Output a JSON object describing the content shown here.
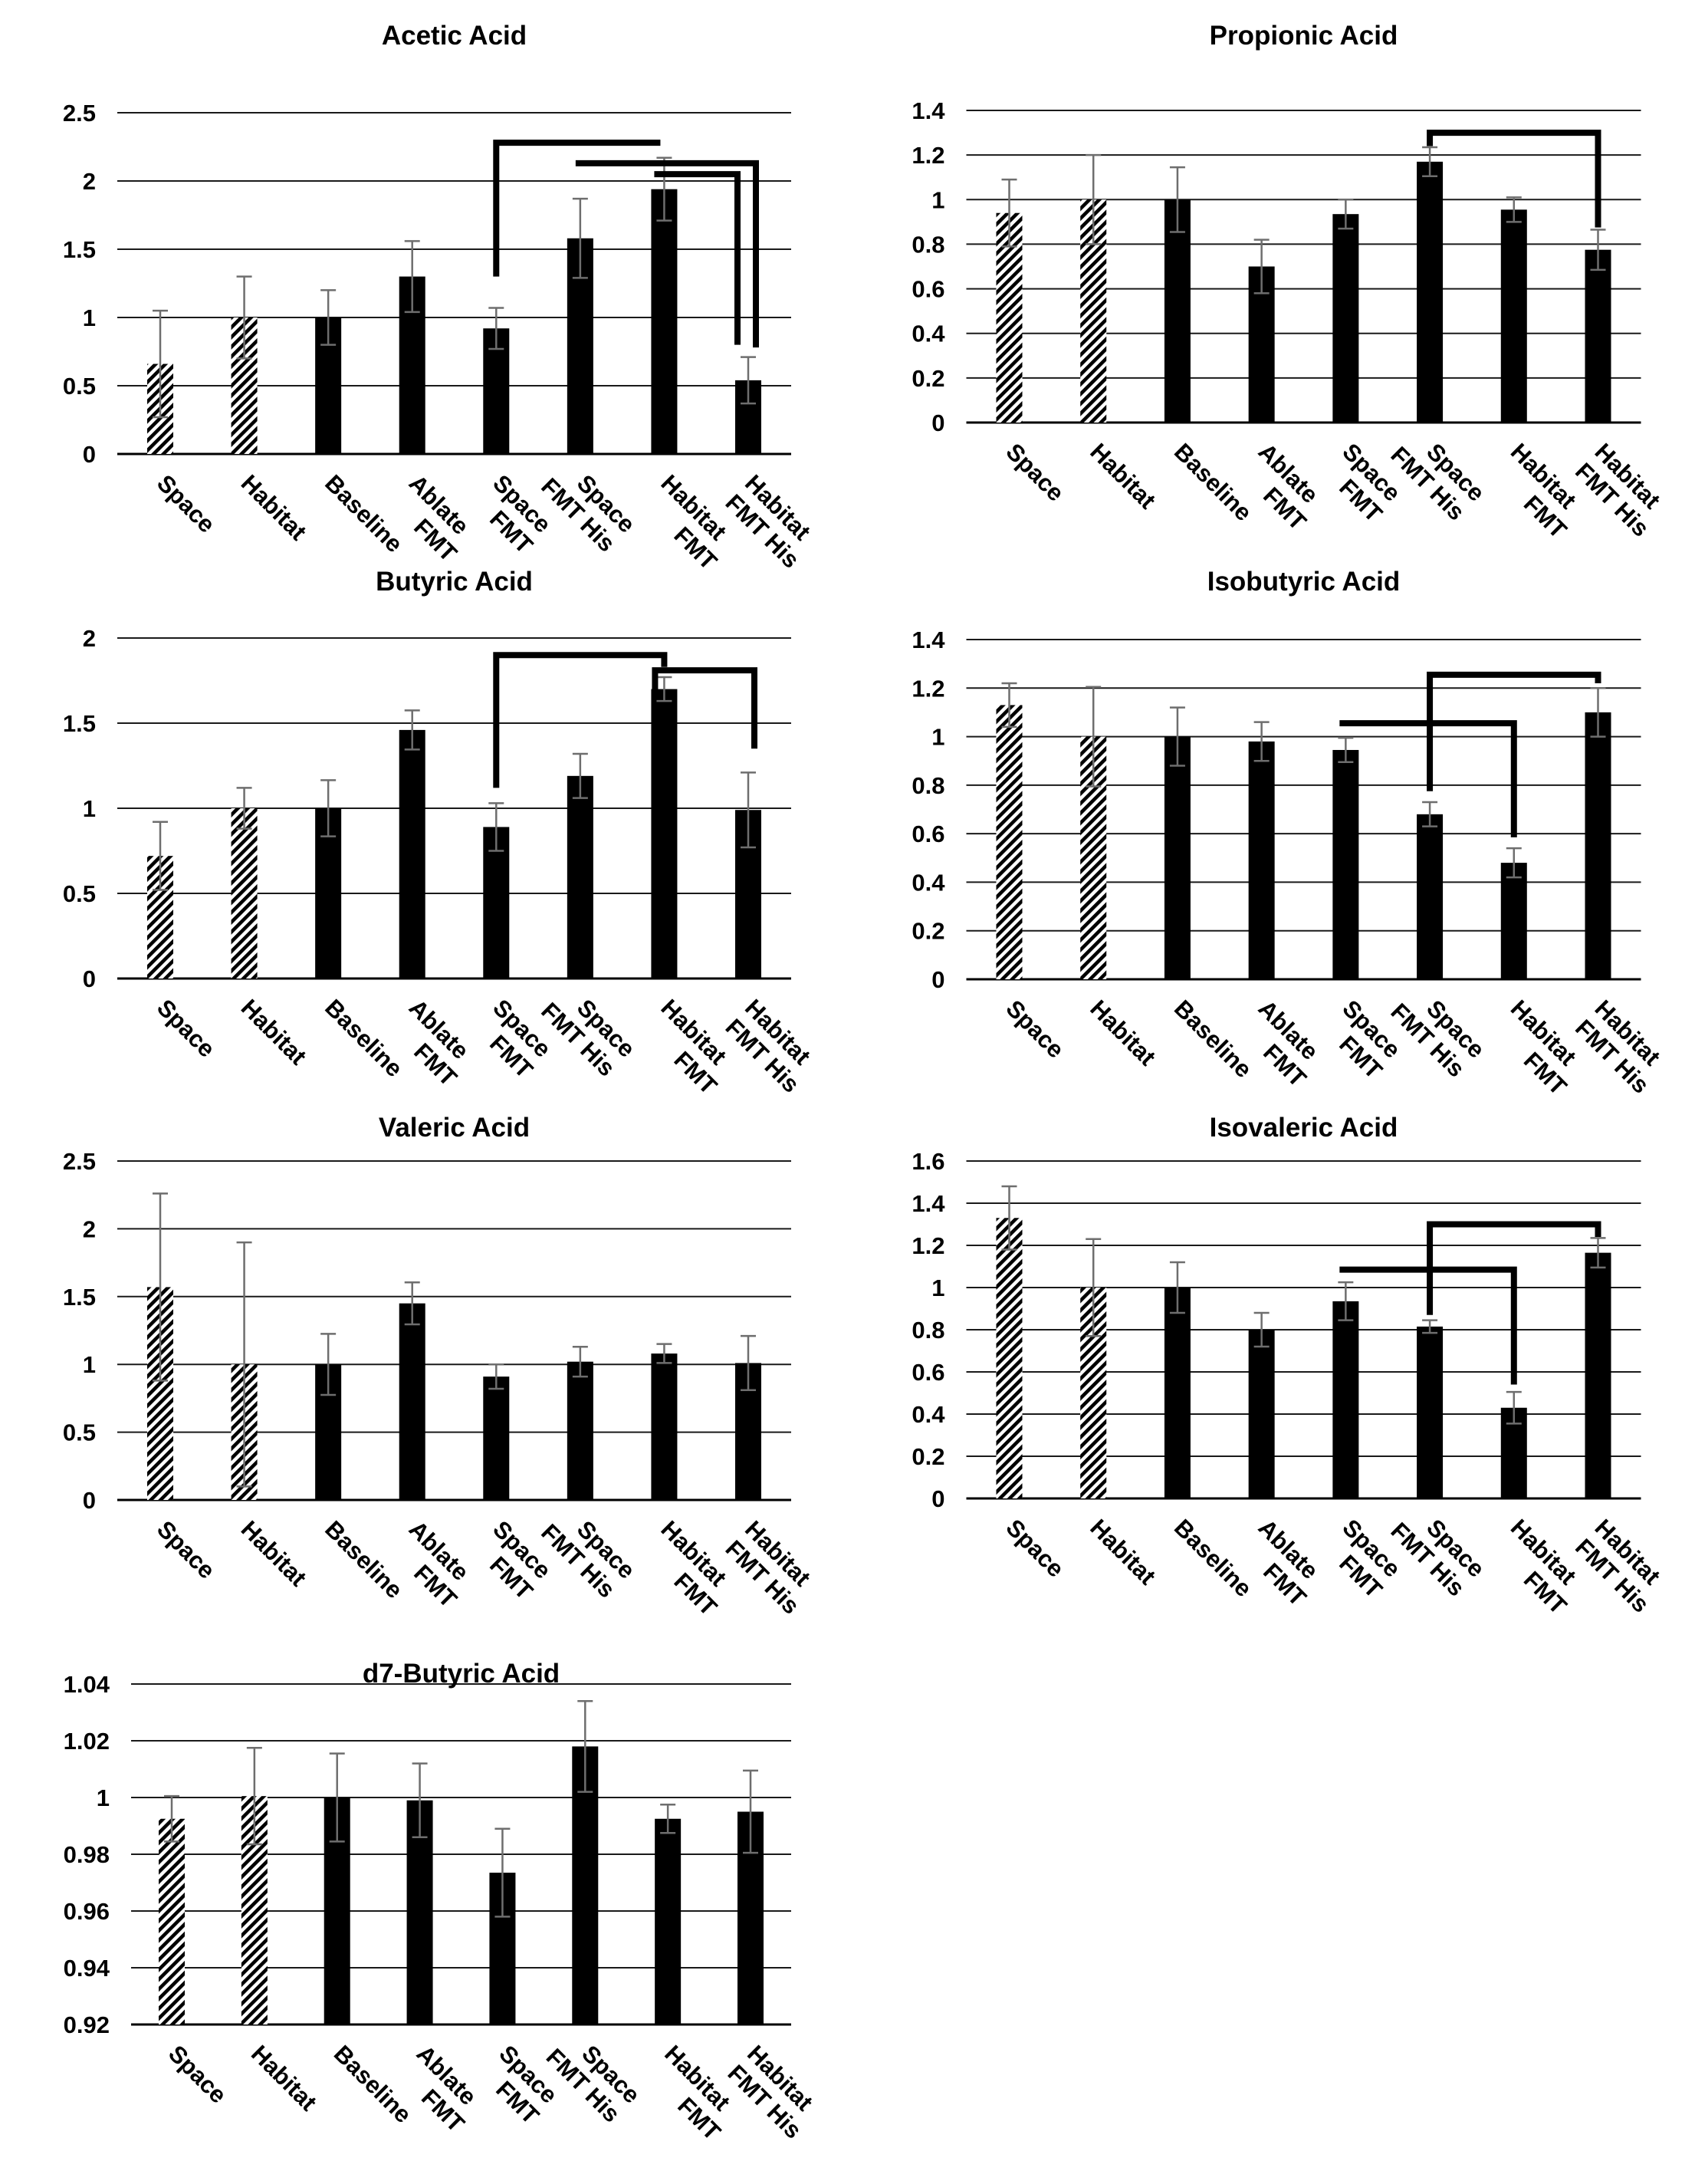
{
  "figure": {
    "rows": 4,
    "columns": 2,
    "background": "#ffffff"
  },
  "colors": {
    "bar": "#000000",
    "hatch_stripe": "#000000",
    "error_bar": "#6e6e6e",
    "gridline": "#1a1a1a",
    "axis": "#000000",
    "bracket": "#000000",
    "text": "#000000"
  },
  "x_categories": [
    {
      "label": "Space",
      "lines": [
        "Space"
      ],
      "hatched": true
    },
    {
      "label": "Habitat",
      "lines": [
        "Habitat"
      ],
      "hatched": true
    },
    {
      "label": "Baseline",
      "lines": [
        "Baseline"
      ],
      "hatched": false
    },
    {
      "label": "Ablate FMT",
      "lines": [
        "Ablate",
        "FMT"
      ],
      "hatched": false
    },
    {
      "label": "Space FMT",
      "lines": [
        "Space",
        "FMT"
      ],
      "hatched": false
    },
    {
      "label": "Space FMT His",
      "lines": [
        "Space",
        "FMT His"
      ],
      "hatched": false
    },
    {
      "label": "Habitat FMT",
      "lines": [
        "Habitat",
        "FMT"
      ],
      "hatched": false
    },
    {
      "label": "Habitat FMT His",
      "lines": [
        "Habitat",
        "FMT His"
      ],
      "hatched": false
    }
  ],
  "chart_data": [
    {
      "type": "bar",
      "title": "Acetic Acid",
      "row": 0,
      "col": 0,
      "ymin": 0,
      "ymax": 2.5,
      "ytick_labels": [
        "0",
        "0.5",
        "1",
        "1.5",
        "2",
        "2.5"
      ],
      "categories": [
        "Space",
        "Habitat",
        "Baseline",
        "Ablate FMT",
        "Space FMT",
        "Space FMT His",
        "Habitat FMT",
        "Habitat FMT His"
      ],
      "values": [
        0.66,
        1.0,
        1.0,
        1.3,
        0.92,
        1.58,
        1.94,
        0.54
      ],
      "errors": [
        0.39,
        0.3,
        0.2,
        0.26,
        0.15,
        0.29,
        0.23,
        0.17
      ],
      "brackets": [
        {
          "a": 4,
          "b": 6,
          "y": 2.28,
          "a_drop": 1.3,
          "b_drop": null,
          "a_dx": 0,
          "b_dx": -5
        },
        {
          "a": 5,
          "b": 7,
          "y": 2.13,
          "a_drop": null,
          "b_drop": 0.78,
          "a_dx": -6,
          "b_dx": 10
        },
        {
          "a": 6,
          "b": 7,
          "y": 2.05,
          "a_drop": null,
          "b_drop": 0.8,
          "a_dx": -13,
          "b_dx": -14
        }
      ]
    },
    {
      "type": "bar",
      "title": "Propionic Acid",
      "row": 0,
      "col": 1,
      "ymin": 0,
      "ymax": 1.4,
      "ytick_labels": [
        "0",
        "0.2",
        "0.4",
        "0.6",
        "0.8",
        "1",
        "1.2",
        "1.4"
      ],
      "categories": [
        "Space",
        "Habitat",
        "Baseline",
        "Ablate FMT",
        "Space FMT",
        "Space FMT His",
        "Habitat FMT",
        "Habitat FMT His"
      ],
      "values": [
        0.94,
        1.0,
        1.0,
        0.7,
        0.935,
        1.17,
        0.955,
        0.775
      ],
      "errors": [
        0.15,
        0.2,
        0.145,
        0.12,
        0.065,
        0.065,
        0.055,
        0.09
      ],
      "brackets": [
        {
          "a": 5,
          "b": 7,
          "y": 1.3,
          "a_drop": 1.24,
          "b_drop": 0.875,
          "a_dx": 0,
          "b_dx": 0
        }
      ]
    },
    {
      "type": "bar",
      "title": "Butyric Acid",
      "row": 1,
      "col": 0,
      "ymin": 0,
      "ymax": 2.0,
      "ytick_labels": [
        "0",
        "0.5",
        "1",
        "1.5",
        "2"
      ],
      "categories": [
        "Space",
        "Habitat",
        "Baseline",
        "Ablate FMT",
        "Space FMT",
        "Space FMT His",
        "Habitat FMT",
        "Habitat FMT His"
      ],
      "values": [
        0.72,
        1.0,
        1.0,
        1.46,
        0.89,
        1.19,
        1.7,
        0.99
      ],
      "errors": [
        0.2,
        0.12,
        0.165,
        0.115,
        0.14,
        0.13,
        0.07,
        0.22
      ],
      "brackets": [
        {
          "a": 4,
          "b": 6,
          "y": 1.9,
          "a_drop": 1.12,
          "b_drop": 1.83,
          "a_dx": 0,
          "b_dx": 0
        },
        {
          "a": 6,
          "b": 7,
          "y": 1.81,
          "a_drop": 1.65,
          "b_drop": 1.35,
          "a_dx": -12,
          "b_dx": 8
        }
      ]
    },
    {
      "type": "bar",
      "title": "Isobutyric Acid",
      "row": 1,
      "col": 1,
      "ymin": 0,
      "ymax": 1.4,
      "ytick_labels": [
        "0",
        "0.2",
        "0.4",
        "0.6",
        "0.8",
        "1",
        "1.2",
        "1.4"
      ],
      "categories": [
        "Space",
        "Habitat",
        "Baseline",
        "Ablate FMT",
        "Space FMT",
        "Space FMT His",
        "Habitat FMT",
        "Habitat FMT His"
      ],
      "values": [
        1.13,
        1.0,
        1.0,
        0.98,
        0.945,
        0.68,
        0.48,
        1.1
      ],
      "errors": [
        0.09,
        0.205,
        0.12,
        0.08,
        0.05,
        0.05,
        0.06,
        0.1
      ],
      "brackets": [
        {
          "a": 5,
          "b": 7,
          "y": 1.255,
          "a_drop": 0.775,
          "b_drop": 1.22,
          "a_dx": 0,
          "b_dx": 0
        },
        {
          "a": 4,
          "b": 6,
          "y": 1.055,
          "a_drop": null,
          "b_drop": 0.585,
          "a_dx": -8,
          "b_dx": 0
        }
      ]
    },
    {
      "type": "bar",
      "title": "Valeric Acid",
      "row": 2,
      "col": 0,
      "ymin": 0,
      "ymax": 2.5,
      "ytick_labels": [
        "0",
        "0.5",
        "1",
        "1.5",
        "2",
        "2.5"
      ],
      "categories": [
        "Space",
        "Habitat",
        "Baseline",
        "Ablate FMT",
        "Space FMT",
        "Space FMT His",
        "Habitat FMT",
        "Habitat FMT His"
      ],
      "values": [
        1.57,
        1.0,
        1.0,
        1.45,
        0.91,
        1.02,
        1.08,
        1.01
      ],
      "errors": [
        0.69,
        0.9,
        0.225,
        0.155,
        0.09,
        0.11,
        0.07,
        0.2
      ],
      "brackets": []
    },
    {
      "type": "bar",
      "title": "Isovaleric Acid",
      "row": 2,
      "col": 1,
      "ymin": 0,
      "ymax": 1.6,
      "ytick_labels": [
        "0",
        "0.2",
        "0.4",
        "0.6",
        "0.8",
        "1",
        "1.2",
        "1.4",
        "1.6"
      ],
      "categories": [
        "Space",
        "Habitat",
        "Baseline",
        "Ablate FMT",
        "Space FMT",
        "Space FMT His",
        "Habitat FMT",
        "Habitat FMT His"
      ],
      "values": [
        1.33,
        1.0,
        1.0,
        0.8,
        0.935,
        0.815,
        0.43,
        1.165
      ],
      "errors": [
        0.15,
        0.23,
        0.12,
        0.08,
        0.09,
        0.03,
        0.075,
        0.07
      ],
      "brackets": [
        {
          "a": 5,
          "b": 7,
          "y": 1.3,
          "a_drop": 0.87,
          "b_drop": 1.24,
          "a_dx": 0,
          "b_dx": 0
        },
        {
          "a": 4,
          "b": 6,
          "y": 1.085,
          "a_drop": null,
          "b_drop": 0.54,
          "a_dx": -8,
          "b_dx": 0
        }
      ]
    },
    {
      "type": "bar",
      "title": "d7-Butyric Acid",
      "row": 3,
      "col": 0,
      "ymin": 0.92,
      "ymax": 1.04,
      "ytick_labels": [
        "0.92",
        "0.94",
        "0.96",
        "0.98",
        "1",
        "1.02",
        "1.04"
      ],
      "categories": [
        "Space",
        "Habitat",
        "Baseline",
        "Ablate FMT",
        "Space FMT",
        "Space FMT His",
        "Habitat FMT",
        "Habitat FMT His"
      ],
      "values": [
        0.9925,
        1.0005,
        1.0,
        0.999,
        0.9735,
        1.018,
        0.9925,
        0.995
      ],
      "errors": [
        0.008,
        0.017,
        0.0155,
        0.013,
        0.0155,
        0.016,
        0.005,
        0.0145
      ],
      "brackets": []
    }
  ]
}
